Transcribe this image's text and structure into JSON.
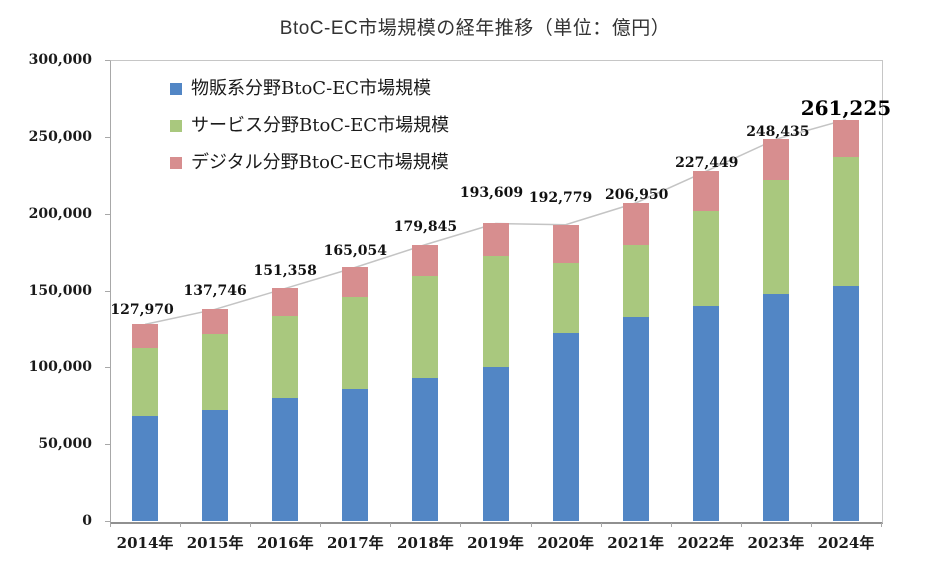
{
  "title": "BtoC-EC市場規模の経年推移（単位：億円）",
  "chart_data": {
    "type": "bar",
    "stacked": true,
    "grid": false,
    "legend_position": "top-left-inside",
    "unit": "億円",
    "ylim": [
      0,
      300000
    ],
    "y_ticks": [
      "0",
      "50,000",
      "100,000",
      "150,000",
      "200,000",
      "250,000",
      "300,000"
    ],
    "y_tick_values": [
      0,
      50000,
      100000,
      150000,
      200000,
      250000,
      300000
    ],
    "categories": [
      "2014年",
      "2015年",
      "2016年",
      "2017年",
      "2018年",
      "2019年",
      "2020年",
      "2021年",
      "2022年",
      "2023年",
      "2024年"
    ],
    "series": [
      {
        "name": "物販系分野BtoC-EC市場規模",
        "color": "#5286C5",
        "values": [
          68043,
          72398,
          80043,
          86008,
          92992,
          100515,
          122333,
          132865,
          139997,
          147899,
          153000
        ]
      },
      {
        "name": "サービス分野BtoC-EC市場規模",
        "color": "#A9C87E",
        "values": [
          44816,
          49014,
          53532,
          59568,
          66471,
          71672,
          45832,
          46424,
          61477,
          74076,
          83800
        ]
      },
      {
        "name": "デジタル分野BtoC-EC市場規模",
        "color": "#D78E8F",
        "values": [
          15111,
          16334,
          17782,
          19478,
          20382,
          21422,
          24614,
          27661,
          25974,
          26460,
          24425
        ]
      }
    ],
    "total_labels": [
      "127,970",
      "137,746",
      "151,358",
      "165,054",
      "179,845",
      "193,609",
      "192,779",
      "206,950",
      "227,449",
      "248,435",
      "261,225"
    ],
    "total_line_color": "#c4c4c4",
    "axis_color": "#a8a8a8",
    "text_color": "#1a1a1a"
  }
}
